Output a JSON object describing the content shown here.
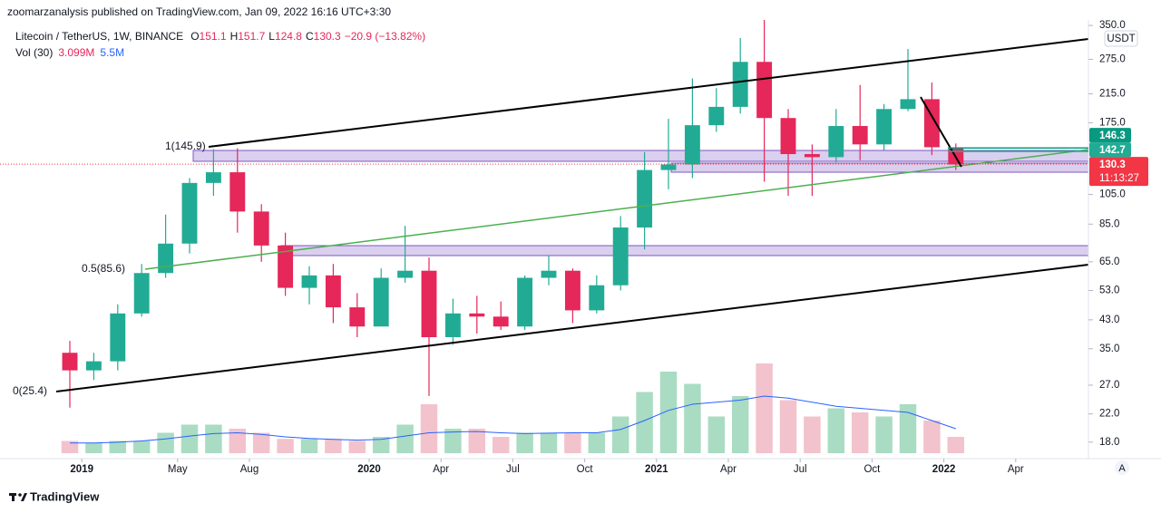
{
  "header": {
    "publisher": "zoomarzanalysis published on TradingView.com, Jan 09, 2022 16:16 UTC+3:30",
    "symbol": "Litecoin / TetherUS, 1W, BINANCE",
    "ohlc": [
      {
        "label": "O",
        "value": 151.1
      },
      {
        "label": "H",
        "value": 151.7
      },
      {
        "label": "L",
        "value": 124.8
      },
      {
        "label": "C",
        "value": 130.3
      }
    ],
    "change": "−20.9 (−13.82%)",
    "volume_label": "Vol (30)",
    "volume": "3.099M",
    "volume_ma": "5.5M",
    "currency": "USDT",
    "scale_button": "A",
    "footer": "TradingView"
  },
  "chart_data": {
    "type": "candlestick",
    "log_scale": true,
    "up_color": "#22ab94",
    "down_color": "#e5275a",
    "x": [
      "2018-12",
      "2019-01",
      "2019-02",
      "2019-03",
      "2019-04",
      "2019-05",
      "2019-06",
      "2019-07",
      "2019-08",
      "2019-09",
      "2019-10",
      "2019-11",
      "2019-12",
      "2020-01",
      "2020-02",
      "2020-03",
      "2020-04",
      "2020-05",
      "2020-06",
      "2020-07",
      "2020-08",
      "2020-09",
      "2020-10",
      "2020-11",
      "2020-12",
      "2021-01",
      "2021-02",
      "2021-03",
      "2021-04",
      "2021-05",
      "2021-06",
      "2021-07",
      "2021-08",
      "2021-09",
      "2021-10",
      "2021-11",
      "2021-12",
      "2022-01"
    ],
    "open": [
      34,
      30,
      32,
      45,
      60,
      74,
      114,
      123,
      93,
      73,
      54,
      59,
      47,
      41,
      58,
      61,
      38,
      45,
      44,
      41,
      58,
      61,
      46,
      55,
      83,
      125,
      130,
      172,
      196,
      270,
      181,
      140,
      137,
      171,
      150,
      193,
      207,
      147
    ],
    "high": [
      37,
      34,
      48,
      64,
      91,
      118,
      145,
      146,
      98,
      80,
      63,
      64,
      52,
      62,
      84,
      67,
      50,
      51,
      49,
      59,
      68,
      62,
      59,
      90,
      142,
      180,
      240,
      224,
      320,
      413,
      193,
      150,
      193,
      229,
      200,
      296,
      233,
      151
    ],
    "low": [
      23,
      28,
      30,
      44,
      58,
      69,
      104,
      80,
      65,
      51,
      48,
      42,
      38,
      41,
      56,
      25,
      36,
      39,
      40,
      40,
      55,
      42,
      45,
      53,
      71,
      109,
      118,
      164,
      187,
      115,
      104,
      104,
      132,
      134,
      144,
      190,
      139,
      125
    ],
    "close": [
      30,
      32,
      45,
      60,
      74,
      114,
      123,
      93,
      73,
      54,
      59,
      47,
      41,
      58,
      61,
      38,
      45,
      44,
      41,
      58,
      61,
      46,
      55,
      83,
      125,
      130,
      172,
      196,
      270,
      181,
      140,
      137,
      171,
      150,
      193,
      207,
      147,
      130
    ],
    "volume": [
      3,
      2.5,
      3,
      3,
      5,
      7,
      7,
      6,
      5,
      3.5,
      3.5,
      3.5,
      3,
      4,
      7,
      12,
      6,
      6,
      4,
      5,
      5,
      5,
      5,
      9,
      15,
      20,
      17,
      9,
      14,
      22,
      13,
      9,
      11,
      10,
      9,
      12,
      8,
      4
    ],
    "volume_ma": [
      2.5,
      2.5,
      2.7,
      3,
      3.5,
      4.2,
      4.8,
      5,
      4.6,
      4,
      3.6,
      3.4,
      3.2,
      3.4,
      4.2,
      5,
      5.2,
      5.3,
      5,
      4.8,
      4.9,
      5,
      5,
      5.8,
      8,
      10.5,
      12,
      12.5,
      13,
      14,
      13.5,
      12.5,
      11.5,
      11,
      10.5,
      10,
      8,
      6
    ],
    "volume_color_up": "#a9dcc3",
    "volume_color_down": "#f2c3cc",
    "volume_ma_color": "#2962ff",
    "vlim": [
      0,
      30
    ],
    "xlim": [
      "2018-10",
      "2022-07"
    ],
    "xticks": [
      {
        "value": "2019-01",
        "label": "2019"
      },
      {
        "value": "2019-05",
        "label": "May"
      },
      {
        "value": "2019-08",
        "label": "Aug"
      },
      {
        "value": "2020-01",
        "label": "2020"
      },
      {
        "value": "2020-04",
        "label": "Apr"
      },
      {
        "value": "2020-07",
        "label": "Jul"
      },
      {
        "value": "2020-10",
        "label": "Oct"
      },
      {
        "value": "2021-01",
        "label": "2021"
      },
      {
        "value": "2021-04",
        "label": "Apr"
      },
      {
        "value": "2021-07",
        "label": "Jul"
      },
      {
        "value": "2021-10",
        "label": "Oct"
      },
      {
        "value": "2022-01",
        "label": "2022"
      },
      {
        "value": "2022-04",
        "label": "Apr"
      }
    ],
    "ylim": [
      16,
      364
    ],
    "yticks": [
      {
        "value": 18,
        "label": "18.0"
      },
      {
        "value": 22,
        "label": "22.0"
      },
      {
        "value": 27,
        "label": "27.0"
      },
      {
        "value": 35,
        "label": "35.0"
      },
      {
        "value": 43,
        "label": "43.0"
      },
      {
        "value": 53,
        "label": "53.0"
      },
      {
        "value": 65,
        "label": "65.0"
      },
      {
        "value": 85,
        "label": "85.0"
      },
      {
        "value": 105,
        "label": "105.0"
      },
      {
        "value": 175,
        "label": "175.0"
      },
      {
        "value": 215,
        "label": "215.0"
      },
      {
        "value": 275,
        "label": "275.0"
      },
      {
        "value": 350,
        "label": "350.0"
      }
    ],
    "price_labels": [
      {
        "value": 146.3,
        "color": "#089981"
      },
      {
        "value": 142.7,
        "color": "#22ab94"
      },
      {
        "value": 130.3,
        "color": "#f23645",
        "countdown": "11:13:27"
      }
    ],
    "annotations": [
      {
        "text": "1(145.9)",
        "color": "#131722"
      },
      {
        "text": "0.5(85.6)",
        "color": "#4caf50"
      },
      {
        "text": "0(25.4)",
        "color": "#131722"
      }
    ]
  }
}
